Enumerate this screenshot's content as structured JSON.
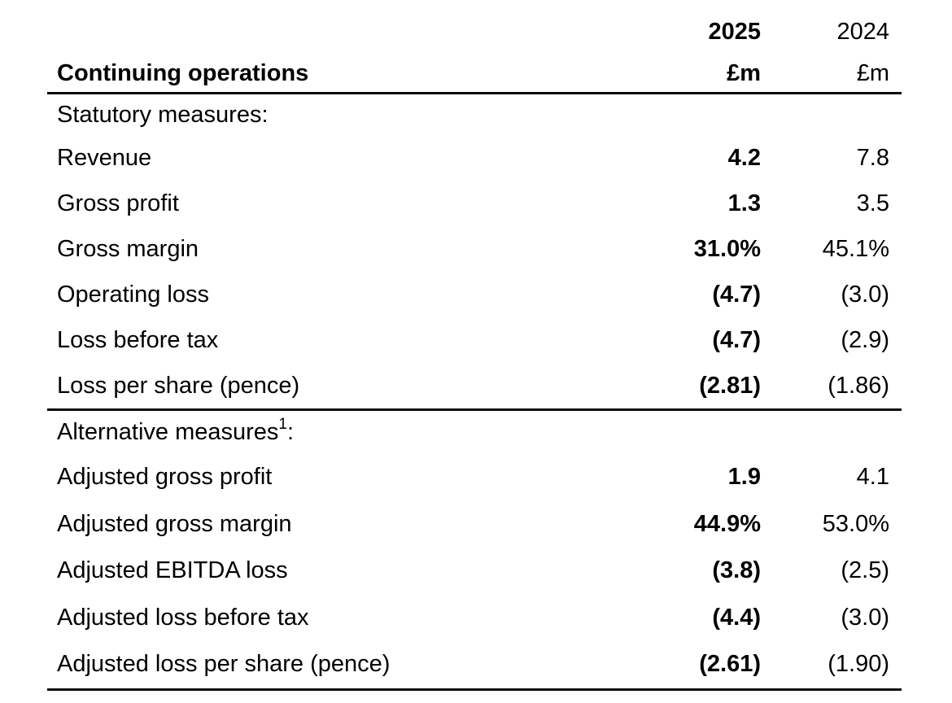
{
  "table": {
    "title": "Continuing operations",
    "columns": [
      {
        "year": "2025",
        "unit": "£m"
      },
      {
        "year": "2024",
        "unit": "£m"
      }
    ],
    "sections": [
      {
        "heading": {
          "text": "Statutory measures",
          "sup": "",
          "after": ":"
        },
        "rows": [
          {
            "label": "Revenue",
            "v2025": "4.2",
            "v2024": "7.8"
          },
          {
            "label": "Gross profit",
            "v2025": "1.3",
            "v2024": "3.5"
          },
          {
            "label": "Gross margin",
            "v2025": "31.0%",
            "v2024": "45.1%"
          },
          {
            "label": "Operating loss",
            "v2025": "(4.7)",
            "v2024": "(3.0)"
          },
          {
            "label": "Loss before tax",
            "v2025": "(4.7)",
            "v2024": "(2.9)"
          },
          {
            "label": "Loss per share (pence)",
            "v2025": "(2.81)",
            "v2024": "(1.86)"
          }
        ]
      },
      {
        "heading": {
          "text": "Alternative measures",
          "sup": "1",
          "after": ":"
        },
        "rows": [
          {
            "label": "Adjusted gross profit",
            "v2025": "1.9",
            "v2024": "4.1"
          },
          {
            "label": "Adjusted gross margin",
            "v2025": "44.9%",
            "v2024": "53.0%"
          },
          {
            "label": "Adjusted EBITDA loss",
            "v2025": "(3.8)",
            "v2024": "(2.5)"
          },
          {
            "label": "Adjusted loss before tax",
            "v2025": "(4.4)",
            "v2024": "(3.0)"
          },
          {
            "label": "Adjusted loss per share (pence)",
            "v2025": "(2.61)",
            "v2024": "(1.90)"
          }
        ]
      }
    ]
  },
  "colors": {
    "text": "#000000",
    "rule": "#0a0a0a",
    "background": "#ffffff"
  }
}
